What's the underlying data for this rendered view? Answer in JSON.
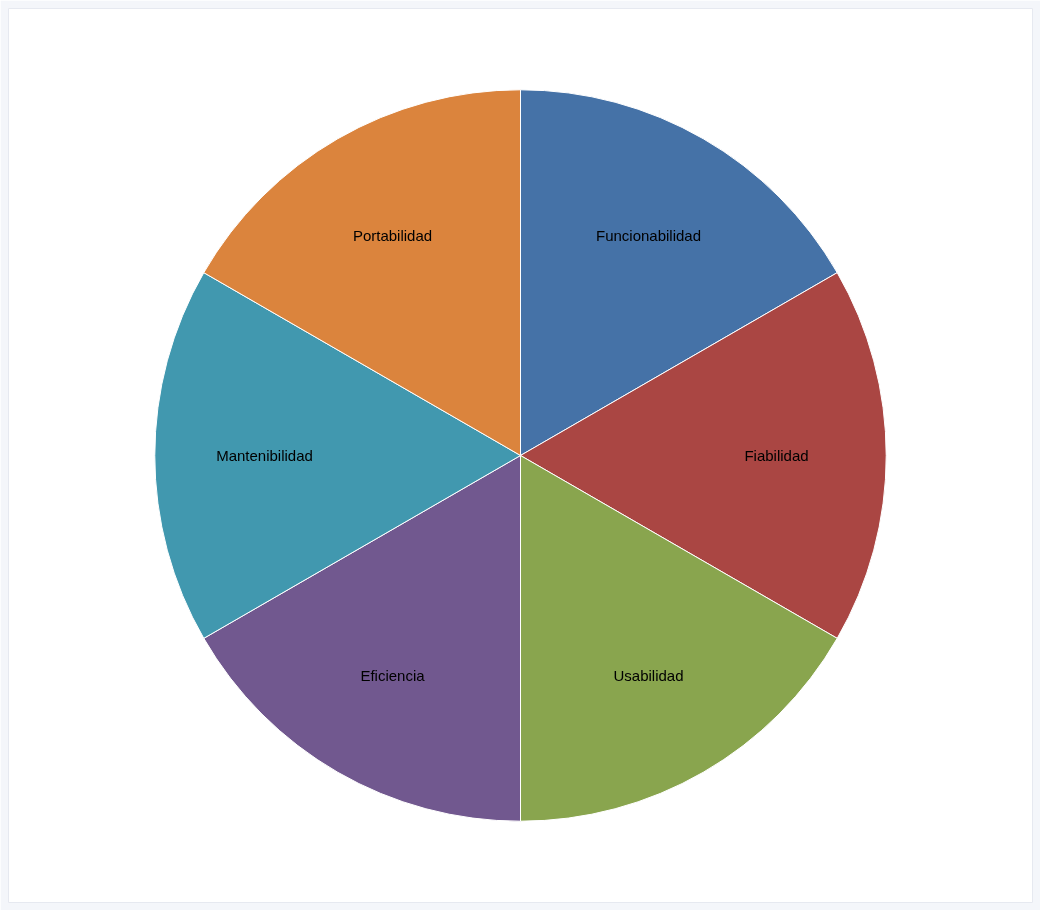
{
  "chart_data": {
    "type": "pie",
    "categories": [
      "Funcionabilidad",
      "Fiabilidad",
      "Usabilidad",
      "Eficiencia",
      "Mantenibilidad",
      "Portabilidad"
    ],
    "values": [
      16.67,
      16.67,
      16.67,
      16.67,
      16.67,
      16.67
    ],
    "colors": [
      "#4572a7",
      "#aa4643",
      "#89a54e",
      "#71588f",
      "#4198af",
      "#db843d"
    ],
    "legend": false
  }
}
